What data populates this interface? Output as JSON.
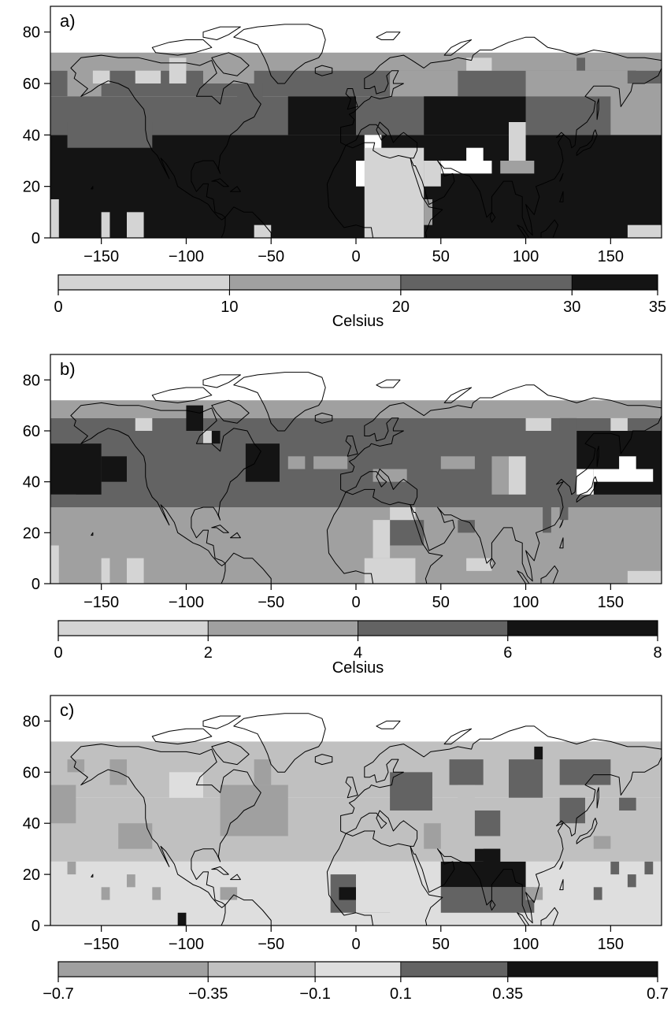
{
  "chart_data": [
    {
      "type": "heatmap",
      "panel_label": "a)",
      "xlim": [
        -180,
        180
      ],
      "ylim": [
        0,
        90
      ],
      "x_ticks": [
        -150,
        -100,
        -50,
        0,
        50,
        100,
        150
      ],
      "y_ticks": [
        0,
        20,
        40,
        60,
        80
      ],
      "colorbar": {
        "label": "Celsius",
        "bounds": [
          0,
          10,
          20,
          30,
          35
        ],
        "tick_labels": [
          "0",
          "10",
          "20",
          "30",
          "35"
        ],
        "colors": [
          "#d4d4d4",
          "#a0a0a0",
          "#636363",
          "#141414"
        ]
      },
      "bands": [
        {
          "lat": [
            65,
            72
          ],
          "level": 1
        },
        {
          "lat": [
            55,
            65
          ],
          "level": 2
        },
        {
          "lat": [
            40,
            55
          ],
          "level": 2
        },
        {
          "lat": [
            0,
            40
          ],
          "level": 3
        }
      ],
      "cells": [
        {
          "lon": -170,
          "lat": 55,
          "w": 20,
          "h": 15,
          "level": 1
        },
        {
          "lon": -90,
          "lat": 60,
          "w": 30,
          "h": 10,
          "level": 1
        },
        {
          "lon": -70,
          "lat": 50,
          "w": 15,
          "h": 10,
          "level": 2
        },
        {
          "lon": -40,
          "lat": 40,
          "w": 40,
          "h": 15,
          "level": 3
        },
        {
          "lon": 20,
          "lat": 55,
          "w": 40,
          "h": 10,
          "level": 1
        },
        {
          "lon": 40,
          "lat": 40,
          "w": 60,
          "h": 15,
          "level": 3
        },
        {
          "lon": 100,
          "lat": 55,
          "w": 60,
          "h": 10,
          "level": 1
        },
        {
          "lon": -170,
          "lat": 35,
          "w": 50,
          "h": 10,
          "level": 2
        },
        {
          "lon": 150,
          "lat": 40,
          "w": 30,
          "h": 20,
          "level": 1
        },
        {
          "lon": 0,
          "lat": 20,
          "w": 20,
          "h": 10,
          "level": 4
        },
        {
          "lon": 5,
          "lat": 30,
          "w": 10,
          "h": 10,
          "level": 4
        },
        {
          "lon": 50,
          "lat": 25,
          "w": 30,
          "h": 5,
          "level": 4
        },
        {
          "lon": 65,
          "lat": 30,
          "w": 10,
          "h": 5,
          "level": 4
        },
        {
          "lon": 35,
          "lat": 20,
          "w": 5,
          "h": 10,
          "level": 4
        },
        {
          "lon": 5,
          "lat": 0,
          "w": 35,
          "h": 35,
          "level": 0
        },
        {
          "lon": 40,
          "lat": 20,
          "w": 10,
          "h": 10,
          "level": 0
        },
        {
          "lon": 90,
          "lat": 30,
          "w": 10,
          "h": 15,
          "level": 0
        },
        {
          "lon": 85,
          "lat": 25,
          "w": 20,
          "h": 5,
          "level": 1
        },
        {
          "lon": 40,
          "lat": 5,
          "w": 5,
          "h": 10,
          "level": 1
        },
        {
          "lon": -180,
          "lat": 0,
          "w": 5,
          "h": 15,
          "level": 0
        },
        {
          "lon": -150,
          "lat": 0,
          "w": 5,
          "h": 10,
          "level": 0
        },
        {
          "lon": -135,
          "lat": 0,
          "w": 10,
          "h": 10,
          "level": 0
        },
        {
          "lon": -60,
          "lat": 0,
          "w": 10,
          "h": 5,
          "level": 0
        },
        {
          "lon": 160,
          "lat": 0,
          "w": 20,
          "h": 5,
          "level": 0
        },
        {
          "lon": -130,
          "lat": 60,
          "w": 15,
          "h": 5,
          "level": 0
        },
        {
          "lon": -110,
          "lat": 60,
          "w": 10,
          "h": 10,
          "level": 0
        },
        {
          "lon": 65,
          "lat": 65,
          "w": 15,
          "h": 5,
          "level": 0
        },
        {
          "lon": -155,
          "lat": 60,
          "w": 10,
          "h": 5,
          "level": 0
        },
        {
          "lon": 160,
          "lat": 60,
          "w": 5,
          "h": 5,
          "level": 2
        },
        {
          "lon": 130,
          "lat": 65,
          "w": 5,
          "h": 5,
          "level": 2
        }
      ]
    },
    {
      "type": "heatmap",
      "panel_label": "b)",
      "xlim": [
        -180,
        180
      ],
      "ylim": [
        0,
        90
      ],
      "x_ticks": [
        -150,
        -100,
        -50,
        0,
        50,
        100,
        150
      ],
      "y_ticks": [
        0,
        20,
        40,
        60,
        80
      ],
      "colorbar": {
        "label": "Celsius",
        "bounds": [
          0,
          2,
          4,
          6,
          8
        ],
        "tick_labels": [
          "0",
          "2",
          "4",
          "6",
          "8"
        ],
        "colors": [
          "#d4d4d4",
          "#a0a0a0",
          "#636363",
          "#141414"
        ]
      },
      "bands": [
        {
          "lat": [
            65,
            72
          ],
          "level": 1
        },
        {
          "lat": [
            30,
            65
          ],
          "level": 2
        },
        {
          "lat": [
            0,
            30
          ],
          "level": 1
        }
      ],
      "cells": [
        {
          "lon": -180,
          "lat": 35,
          "w": 30,
          "h": 20,
          "level": 3
        },
        {
          "lon": -150,
          "lat": 40,
          "w": 15,
          "h": 10,
          "level": 3
        },
        {
          "lon": -180,
          "lat": 30,
          "w": 15,
          "h": 5,
          "level": 2
        },
        {
          "lon": -65,
          "lat": 40,
          "w": 20,
          "h": 15,
          "level": 3
        },
        {
          "lon": -100,
          "lat": 60,
          "w": 10,
          "h": 10,
          "level": 3
        },
        {
          "lon": -85,
          "lat": 55,
          "w": 5,
          "h": 5,
          "level": 3
        },
        {
          "lon": 130,
          "lat": 35,
          "w": 50,
          "h": 25,
          "level": 3
        },
        {
          "lon": 140,
          "lat": 40,
          "w": 35,
          "h": 5,
          "level": 4
        },
        {
          "lon": 130,
          "lat": 35,
          "w": 10,
          "h": 10,
          "level": 4
        },
        {
          "lon": 155,
          "lat": 45,
          "w": 10,
          "h": 5,
          "level": 4
        },
        {
          "lon": -40,
          "lat": 45,
          "w": 10,
          "h": 5,
          "level": 1
        },
        {
          "lon": -25,
          "lat": 45,
          "w": 20,
          "h": 5,
          "level": 1
        },
        {
          "lon": 10,
          "lat": 40,
          "w": 20,
          "h": 5,
          "level": 1
        },
        {
          "lon": 50,
          "lat": 45,
          "w": 20,
          "h": 5,
          "level": 1
        },
        {
          "lon": 80,
          "lat": 35,
          "w": 10,
          "h": 15,
          "level": 1
        },
        {
          "lon": 90,
          "lat": 35,
          "w": 10,
          "h": 15,
          "level": 0
        },
        {
          "lon": 20,
          "lat": 15,
          "w": 20,
          "h": 10,
          "level": 2
        },
        {
          "lon": -20,
          "lat": 10,
          "w": 20,
          "h": 10,
          "level": 1
        },
        {
          "lon": 5,
          "lat": 0,
          "w": 30,
          "h": 10,
          "level": 0
        },
        {
          "lon": 10,
          "lat": 10,
          "w": 10,
          "h": 15,
          "level": 0
        },
        {
          "lon": 20,
          "lat": 25,
          "w": 15,
          "h": 5,
          "level": 0
        },
        {
          "lon": 65,
          "lat": 5,
          "w": 15,
          "h": 5,
          "level": 0
        },
        {
          "lon": -180,
          "lat": 0,
          "w": 5,
          "h": 15,
          "level": 0
        },
        {
          "lon": -150,
          "lat": 0,
          "w": 5,
          "h": 10,
          "level": 0
        },
        {
          "lon": -135,
          "lat": 0,
          "w": 10,
          "h": 10,
          "level": 0
        },
        {
          "lon": 160,
          "lat": 0,
          "w": 20,
          "h": 5,
          "level": 0
        },
        {
          "lon": 60,
          "lat": 20,
          "w": 10,
          "h": 5,
          "level": 2
        },
        {
          "lon": 110,
          "lat": 20,
          "w": 5,
          "h": 10,
          "level": 2
        },
        {
          "lon": 120,
          "lat": 25,
          "w": 5,
          "h": 5,
          "level": 2
        },
        {
          "lon": -90,
          "lat": 55,
          "w": 5,
          "h": 5,
          "level": 0
        },
        {
          "lon": -130,
          "lat": 60,
          "w": 10,
          "h": 5,
          "level": 0
        },
        {
          "lon": 100,
          "lat": 60,
          "w": 15,
          "h": 5,
          "level": 0
        },
        {
          "lon": 150,
          "lat": 60,
          "w": 10,
          "h": 5,
          "level": 0
        },
        {
          "lon": 120,
          "lat": 60,
          "w": 10,
          "h": 5,
          "level": 2
        }
      ]
    },
    {
      "type": "heatmap",
      "panel_label": "c)",
      "xlim": [
        -180,
        180
      ],
      "ylim": [
        0,
        90
      ],
      "x_ticks": [
        -150,
        -100,
        -50,
        0,
        50,
        100,
        150
      ],
      "y_ticks": [
        0,
        20,
        40,
        60,
        80
      ],
      "colorbar": {
        "label": "",
        "bounds": [
          -0.7,
          -0.35,
          -0.1,
          0.1,
          0.35,
          0.7
        ],
        "tick_labels": [
          "−0.7",
          "−0.35",
          "−0.1",
          "0.1",
          "0.35",
          "0.7"
        ],
        "colors": [
          "#a0a0a0",
          "#c0c0c0",
          "#dedede",
          "#636363",
          "#141414"
        ]
      },
      "bands": [
        {
          "lat": [
            50,
            72
          ],
          "level": 1
        },
        {
          "lat": [
            25,
            50
          ],
          "level": 1
        },
        {
          "lat": [
            0,
            25
          ],
          "level": 2
        }
      ],
      "cells": [
        {
          "lon": -180,
          "lat": 40,
          "w": 15,
          "h": 15,
          "level": 0
        },
        {
          "lon": -140,
          "lat": 30,
          "w": 20,
          "h": 10,
          "level": 0
        },
        {
          "lon": -80,
          "lat": 35,
          "w": 40,
          "h": 20,
          "level": 0
        },
        {
          "lon": -110,
          "lat": 50,
          "w": 20,
          "h": 10,
          "level": 2
        },
        {
          "lon": -60,
          "lat": 55,
          "w": 10,
          "h": 10,
          "level": 0
        },
        {
          "lon": 20,
          "lat": 45,
          "w": 25,
          "h": 15,
          "level": 3
        },
        {
          "lon": 55,
          "lat": 55,
          "w": 20,
          "h": 10,
          "level": 3
        },
        {
          "lon": 90,
          "lat": 50,
          "w": 20,
          "h": 15,
          "level": 3
        },
        {
          "lon": 120,
          "lat": 55,
          "w": 30,
          "h": 10,
          "level": 3
        },
        {
          "lon": 105,
          "lat": 65,
          "w": 5,
          "h": 5,
          "level": 4
        },
        {
          "lon": 70,
          "lat": 35,
          "w": 15,
          "h": 10,
          "level": 3
        },
        {
          "lon": 120,
          "lat": 40,
          "w": 15,
          "h": 10,
          "level": 3
        },
        {
          "lon": 155,
          "lat": 45,
          "w": 10,
          "h": 5,
          "level": 3
        },
        {
          "lon": 50,
          "lat": 15,
          "w": 50,
          "h": 10,
          "level": 4
        },
        {
          "lon": 70,
          "lat": 25,
          "w": 15,
          "h": 5,
          "level": 4
        },
        {
          "lon": 75,
          "lat": 20,
          "w": 10,
          "h": 10,
          "level": 4
        },
        {
          "lon": 50,
          "lat": 5,
          "w": 55,
          "h": 10,
          "level": 3
        },
        {
          "lon": -15,
          "lat": 5,
          "w": 35,
          "h": 15,
          "level": 3
        },
        {
          "lon": -10,
          "lat": 10,
          "w": 10,
          "h": 5,
          "level": 4
        },
        {
          "lon": 0,
          "lat": 5,
          "w": 35,
          "h": 20,
          "level": 2
        },
        {
          "lon": 5,
          "lat": 10,
          "w": 25,
          "h": 15,
          "level": 2
        },
        {
          "lon": -105,
          "lat": 0,
          "w": 5,
          "h": 5,
          "level": 4
        },
        {
          "lon": -150,
          "lat": 10,
          "w": 5,
          "h": 5,
          "level": 0
        },
        {
          "lon": -135,
          "lat": 15,
          "w": 5,
          "h": 5,
          "level": 0
        },
        {
          "lon": -120,
          "lat": 10,
          "w": 5,
          "h": 5,
          "level": 0
        },
        {
          "lon": 140,
          "lat": 10,
          "w": 5,
          "h": 5,
          "level": 3
        },
        {
          "lon": 160,
          "lat": 15,
          "w": 5,
          "h": 5,
          "level": 3
        },
        {
          "lon": 170,
          "lat": 20,
          "w": 5,
          "h": 5,
          "level": 3
        },
        {
          "lon": 150,
          "lat": 20,
          "w": 5,
          "h": 5,
          "level": 3
        },
        {
          "lon": -170,
          "lat": 20,
          "w": 5,
          "h": 5,
          "level": 0
        },
        {
          "lon": -80,
          "lat": 10,
          "w": 10,
          "h": 5,
          "level": 0
        },
        {
          "lon": 100,
          "lat": 10,
          "w": 10,
          "h": 5,
          "level": 0
        },
        {
          "lon": 60,
          "lat": 45,
          "w": 10,
          "h": 10,
          "level": 1
        },
        {
          "lon": 40,
          "lat": 30,
          "w": 10,
          "h": 10,
          "level": 0
        },
        {
          "lon": 140,
          "lat": 30,
          "w": 10,
          "h": 5,
          "level": 0
        },
        {
          "lon": -170,
          "lat": 60,
          "w": 10,
          "h": 5,
          "level": 0
        },
        {
          "lon": -145,
          "lat": 55,
          "w": 10,
          "h": 10,
          "level": 0
        }
      ]
    }
  ]
}
